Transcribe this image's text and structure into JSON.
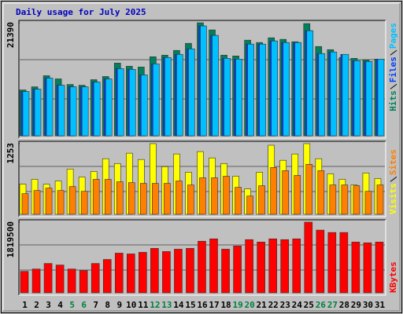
{
  "chart_data": [
    {
      "type": "bar",
      "title": "Daily usage for July 2025",
      "series": [
        {
          "name": "Hits",
          "color": "#00805c",
          "values": [
            8680,
            9270,
            11370,
            10770,
            9720,
            9570,
            10620,
            11220,
            13760,
            13160,
            13010,
            14960,
            15260,
            16160,
            17500,
            21390,
            20040,
            15260,
            15110,
            18100,
            17650,
            18550,
            18250,
            17800,
            21240,
            16900,
            16300,
            14810,
            14660,
            14360,
            14510
          ]
        },
        {
          "name": "Files",
          "color": "#0040ff",
          "values": [
            8380,
            8830,
            10920,
            9570,
            9270,
            9270,
            10170,
            10770,
            12710,
            12570,
            11520,
            13610,
            14810,
            15410,
            16450,
            20790,
            19000,
            14660,
            14510,
            17350,
            17350,
            17950,
            17650,
            17650,
            19890,
            15560,
            15860,
            15410,
            14210,
            14060,
            14510
          ]
        },
        {
          "name": "Pages",
          "color": "#00c0ff",
          "values": [
            8380,
            8830,
            10920,
            9570,
            9270,
            9270,
            10170,
            10770,
            12710,
            12570,
            11520,
            13610,
            14810,
            15410,
            16450,
            20790,
            19000,
            14660,
            14510,
            17350,
            17350,
            17950,
            17650,
            17650,
            19890,
            15560,
            15860,
            15410,
            14210,
            14060,
            14510
          ]
        }
      ],
      "ylim": [
        0,
        21390
      ],
      "yticks": [
        21390
      ]
    },
    {
      "type": "bar",
      "series": [
        {
          "name": "Visits",
          "color": "#ffff00",
          "values": [
            535,
            620,
            535,
            591,
            803,
            662,
            760,
            986,
            901,
            1084,
            972,
            1253,
            845,
            1070,
            746,
            1112,
            1000,
            901,
            676,
            451,
            746,
            1225,
            958,
            1070,
            1253,
            986,
            718,
            620,
            521,
            732,
            634
          ]
        },
        {
          "name": "Sites",
          "color": "#ff8000",
          "values": [
            366,
            422,
            465,
            422,
            493,
            408,
            620,
            620,
            577,
            563,
            549,
            549,
            549,
            591,
            521,
            648,
            648,
            676,
            479,
            324,
            507,
            831,
            774,
            690,
            887,
            774,
            521,
            521,
            507,
            408,
            521
          ]
        }
      ],
      "ylim": [
        0,
        1253
      ],
      "yticks": [
        1253
      ]
    },
    {
      "type": "bar",
      "categories": [
        "1",
        "2",
        "3",
        "4",
        "5",
        "6",
        "7",
        "8",
        "9",
        "10",
        "11",
        "12",
        "13",
        "14",
        "15",
        "16",
        "17",
        "18",
        "19",
        "20",
        "21",
        "22",
        "23",
        "24",
        "25",
        "26",
        "27",
        "28",
        "29",
        "30",
        "31"
      ],
      "weekend_days": [
        "5",
        "6",
        "12",
        "13",
        "19",
        "20",
        "26",
        "27"
      ],
      "weekend_color": "#008040",
      "series": [
        {
          "name": "KBytes",
          "color": "#ff0000",
          "values": [
            552000,
            613000,
            756000,
            716000,
            613000,
            572000,
            756000,
            859000,
            1022000,
            1002000,
            1043000,
            1145000,
            1063000,
            1124000,
            1145000,
            1329000,
            1390000,
            1124000,
            1206000,
            1370000,
            1308000,
            1390000,
            1370000,
            1390000,
            1819500,
            1615000,
            1554000,
            1554000,
            1308000,
            1288000,
            1308000
          ]
        }
      ],
      "ylim": [
        0,
        1819500
      ],
      "yticks": [
        1819500
      ]
    }
  ]
}
